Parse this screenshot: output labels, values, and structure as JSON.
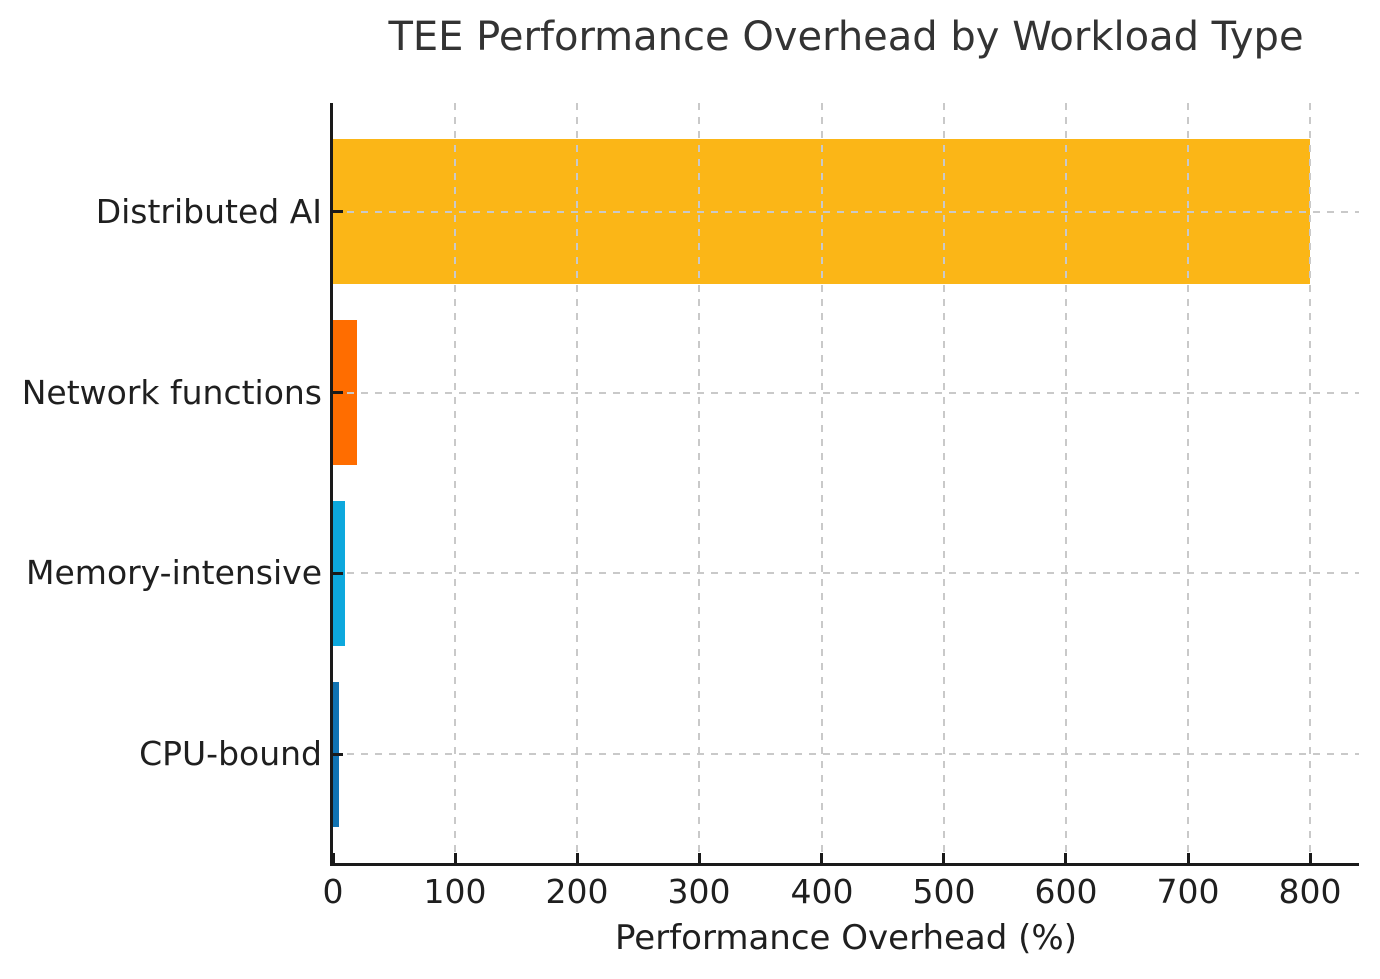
{
  "chart_data": {
    "type": "bar",
    "orientation": "horizontal",
    "title": "TEE Performance Overhead by Workload Type",
    "xlabel": "Performance Overhead (%)",
    "ylabel": "",
    "categories": [
      "Distributed AI",
      "Network functions",
      "Memory-intensive",
      "CPU-bound"
    ],
    "values": [
      800,
      20,
      10,
      5
    ],
    "bar_colors": [
      "#fbb617",
      "#ff6d00",
      "#0da8dd",
      "#1173b2"
    ],
    "xlim": [
      0,
      840
    ],
    "xticks": [
      0,
      100,
      200,
      300,
      400,
      500,
      600,
      700,
      800
    ],
    "grid": true,
    "grid_style": "dashed",
    "legend": "none"
  },
  "colors": {
    "background": "#ffffff",
    "grid": "#c9c9c9",
    "spine": "#1a1a1a",
    "text": "#1f1f1f",
    "title": "#333333"
  }
}
